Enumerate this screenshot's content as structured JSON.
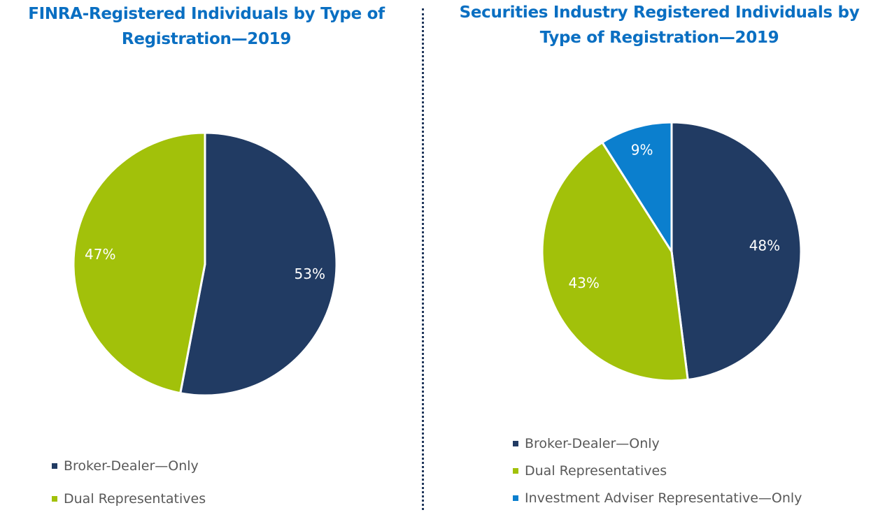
{
  "chart_data": [
    {
      "type": "pie",
      "title": "FINRA-Registered Individuals by Type of Registration—2019",
      "labels": [
        "Broker-Dealer—Only",
        "Dual Representatives"
      ],
      "values": [
        53,
        47
      ],
      "data_labels": [
        "53%",
        "47%"
      ],
      "colors": [
        "#213b63",
        "#a2c10a"
      ],
      "legend": "bottom-left"
    },
    {
      "type": "pie",
      "title": "Securities Industry Registered Individuals by Type of Registration—2019",
      "labels": [
        "Broker-Dealer—Only",
        "Dual Representatives",
        "Investment Adviser Representative—Only"
      ],
      "values": [
        48,
        43,
        9
      ],
      "data_labels": [
        "48%",
        "43%",
        "9%"
      ],
      "colors": [
        "#213b63",
        "#a2c10a",
        "#0b7fce"
      ],
      "legend": "bottom-left"
    }
  ]
}
